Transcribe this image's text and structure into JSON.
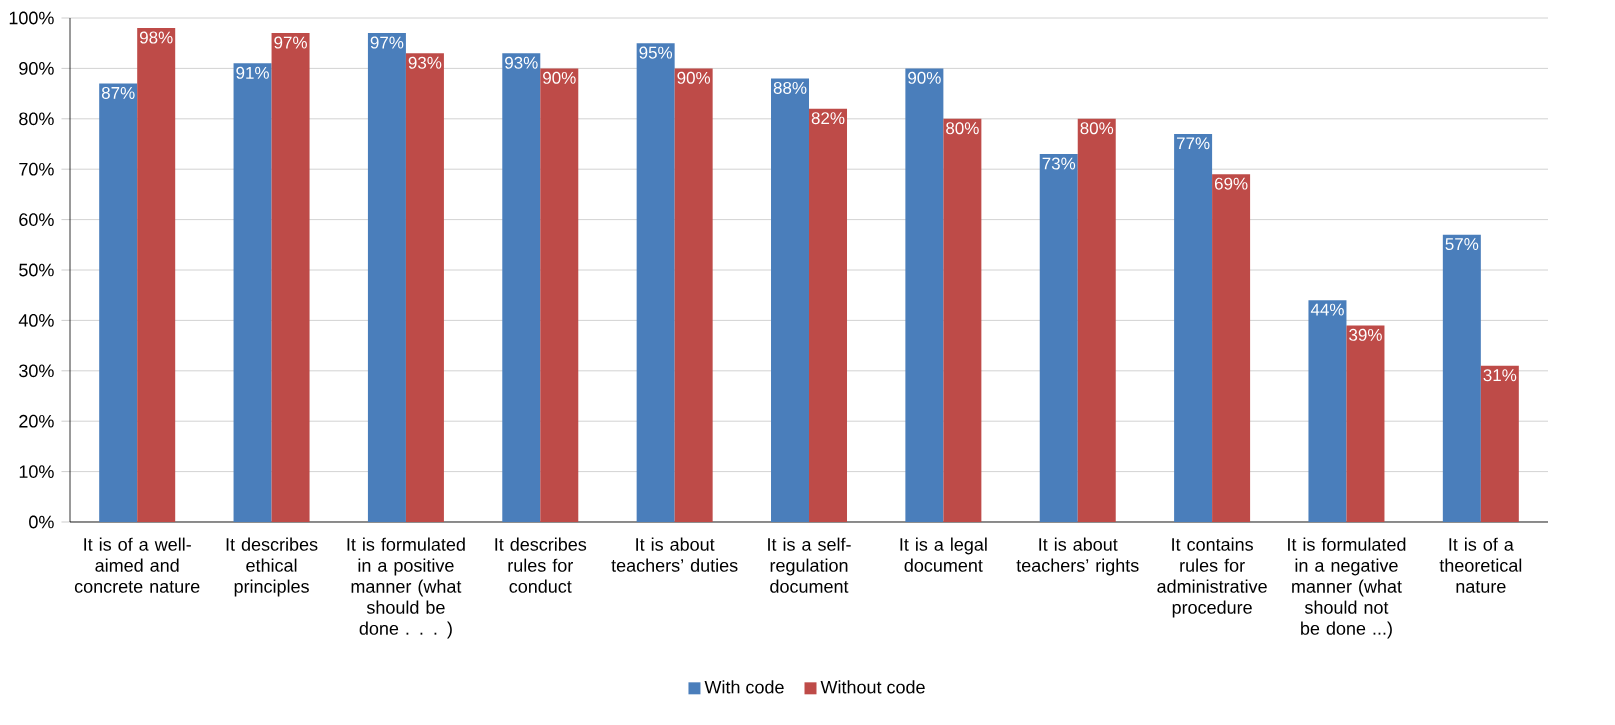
{
  "chart_data": {
    "type": "bar",
    "categories": [
      "It is of a well-aimed and concrete nature",
      "It describes ethical principles",
      "It is formulated in a positive manner (what should be done . . . )",
      "It describes rules for conduct",
      "It is about teachers’ duties",
      "It is a self-regulation document",
      "It is a legal document",
      "It is about teachers’ rights",
      "It contains rules for administrative procedure",
      "It is formulated in a negative manner (what should not be done ...)",
      "It is of a theoretical nature"
    ],
    "series": [
      {
        "name": "With code",
        "color": "#4a7ebb",
        "values": [
          87,
          91,
          97,
          93,
          95,
          88,
          90,
          73,
          77,
          44,
          57
        ],
        "value_labels": [
          "87%",
          "91%",
          "97%",
          "93%",
          "95%",
          "88%",
          "90%",
          "73%",
          "77%",
          "44%",
          "57%"
        ]
      },
      {
        "name": "Without code",
        "color": "#be4b48",
        "values": [
          98,
          97,
          93,
          90,
          90,
          82,
          80,
          80,
          69,
          39,
          31
        ],
        "value_labels": [
          "98%",
          "97%",
          "93%",
          "90%",
          "90%",
          "82%",
          "80%",
          "80%",
          "69%",
          "39%",
          "31%"
        ]
      }
    ],
    "ylim": [
      0,
      100
    ],
    "yticks": [
      {
        "value": 0,
        "label": "0%"
      },
      {
        "value": 10,
        "label": "10%"
      },
      {
        "value": 20,
        "label": "20%"
      },
      {
        "value": 30,
        "label": "30%"
      },
      {
        "value": 40,
        "label": "40%"
      },
      {
        "value": 50,
        "label": "50%"
      },
      {
        "value": 60,
        "label": "60%"
      },
      {
        "value": 70,
        "label": "70%"
      },
      {
        "value": 80,
        "label": "80%"
      },
      {
        "value": 90,
        "label": "90%"
      },
      {
        "value": 100,
        "label": "100%"
      }
    ],
    "grid": "y",
    "legend": "bottom"
  }
}
